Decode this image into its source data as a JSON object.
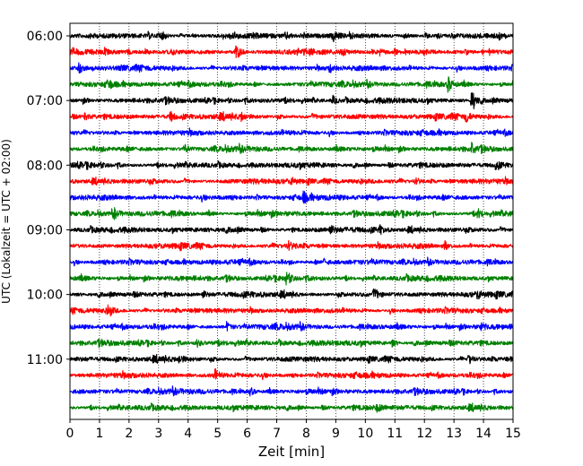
{
  "chart_data": {
    "type": "line",
    "title": "",
    "xlabel": "Zeit  [min]",
    "ylabel": "UTC (Lokalzeit = UTC + 02:00)",
    "xlim": [
      0,
      15
    ],
    "x_ticks": [
      "0",
      "1",
      "2",
      "3",
      "4",
      "5",
      "6",
      "7",
      "8",
      "9",
      "10",
      "11",
      "12",
      "13",
      "14",
      "15"
    ],
    "y_ticks": [
      "06:00",
      "07:00",
      "08:00",
      "09:00",
      "10:00",
      "11:00"
    ],
    "grid": "vertical dotted lines at each minute",
    "trace_colors": [
      "#000000",
      "#ff0000",
      "#0000ff",
      "#008000"
    ],
    "traces": [
      {
        "start": "06:00",
        "color": "#000000",
        "events": [
          {
            "t": 3.0,
            "amp": 0.35
          },
          {
            "t": 7.3,
            "amp": 0.3
          },
          {
            "t": 8.9,
            "amp": 0.6
          }
        ]
      },
      {
        "start": "06:15",
        "color": "#ff0000",
        "events": [
          {
            "t": 5.6,
            "amp": 0.55
          }
        ]
      },
      {
        "start": "06:30",
        "color": "#0000ff",
        "events": [
          {
            "t": 0.3,
            "amp": 0.6
          },
          {
            "t": 8.8,
            "amp": 0.45
          }
        ]
      },
      {
        "start": "06:45",
        "color": "#008000",
        "events": [
          {
            "t": 1.3,
            "amp": 0.45
          },
          {
            "t": 12.8,
            "amp": 0.75
          }
        ]
      },
      {
        "start": "07:00",
        "color": "#000000",
        "events": [
          {
            "t": 8.9,
            "amp": 0.4
          },
          {
            "t": 13.6,
            "amp": 1.3
          }
        ]
      },
      {
        "start": "07:15",
        "color": "#ff0000",
        "events": [
          {
            "t": 0.5,
            "amp": 0.35
          },
          {
            "t": 3.4,
            "amp": 0.5
          },
          {
            "t": 5.8,
            "amp": 0.35
          },
          {
            "t": 13.4,
            "amp": 0.5
          }
        ]
      },
      {
        "start": "07:30",
        "color": "#0000ff",
        "events": []
      },
      {
        "start": "07:45",
        "color": "#008000",
        "events": [
          {
            "t": 3.9,
            "amp": 0.3
          },
          {
            "t": 13.6,
            "amp": 0.6
          }
        ]
      },
      {
        "start": "08:00",
        "color": "#000000",
        "events": [
          {
            "t": 14.4,
            "amp": 0.35
          }
        ]
      },
      {
        "start": "08:15",
        "color": "#ff0000",
        "events": [
          {
            "t": 7.5,
            "amp": 0.3
          },
          {
            "t": 11.7,
            "amp": 0.3
          }
        ]
      },
      {
        "start": "08:30",
        "color": "#0000ff",
        "events": [
          {
            "t": 7.9,
            "amp": 0.55
          }
        ]
      },
      {
        "start": "08:45",
        "color": "#008000",
        "events": [
          {
            "t": 1.5,
            "amp": 0.35
          },
          {
            "t": 13.8,
            "amp": 0.45
          }
        ]
      },
      {
        "start": "09:00",
        "color": "#000000",
        "events": [
          {
            "t": 8.8,
            "amp": 0.4
          },
          {
            "t": 10.5,
            "amp": 0.35
          }
        ]
      },
      {
        "start": "09:15",
        "color": "#ff0000",
        "events": [
          {
            "t": 7.4,
            "amp": 0.4
          },
          {
            "t": 12.7,
            "amp": 0.4
          }
        ]
      },
      {
        "start": "09:30",
        "color": "#0000ff",
        "events": [
          {
            "t": 8.6,
            "amp": 0.3
          }
        ]
      },
      {
        "start": "09:45",
        "color": "#008000",
        "events": [
          {
            "t": 7.3,
            "amp": 0.6
          }
        ]
      },
      {
        "start": "10:00",
        "color": "#000000",
        "events": [
          {
            "t": 4.5,
            "amp": 0.35
          },
          {
            "t": 10.3,
            "amp": 0.45
          },
          {
            "t": 13.8,
            "amp": 0.35
          }
        ]
      },
      {
        "start": "10:15",
        "color": "#ff0000",
        "events": [
          {
            "t": 1.3,
            "amp": 0.6
          }
        ]
      },
      {
        "start": "10:30",
        "color": "#0000ff",
        "events": [
          {
            "t": 5.3,
            "amp": 0.45
          },
          {
            "t": 13.9,
            "amp": 0.3
          }
        ]
      },
      {
        "start": "10:45",
        "color": "#008000",
        "events": [
          {
            "t": 4.3,
            "amp": 0.35
          },
          {
            "t": 10.9,
            "amp": 0.35
          }
        ]
      },
      {
        "start": "11:00",
        "color": "#000000",
        "events": [
          {
            "t": 3.7,
            "amp": 0.35
          },
          {
            "t": 13.5,
            "amp": 0.55
          }
        ]
      },
      {
        "start": "11:15",
        "color": "#ff0000",
        "events": [
          {
            "t": 4.9,
            "amp": 0.5
          }
        ]
      },
      {
        "start": "11:30",
        "color": "#0000ff",
        "events": [
          {
            "t": 6.1,
            "amp": 0.4
          }
        ]
      },
      {
        "start": "11:45",
        "color": "#008000",
        "events": [
          {
            "t": 10.4,
            "amp": 0.3
          }
        ]
      }
    ]
  }
}
